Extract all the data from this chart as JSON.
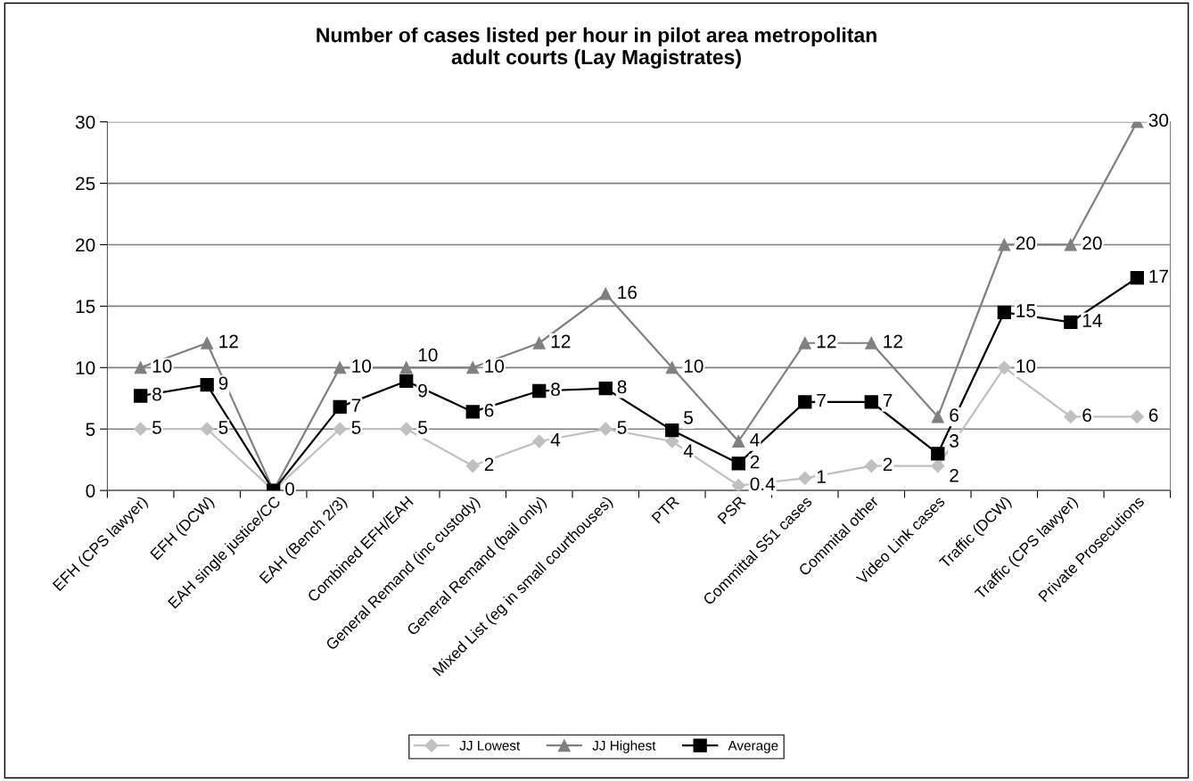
{
  "chart_data": {
    "type": "line",
    "title": "Number of cases listed per hour in pilot area metropolitan\nadult courts (Lay Magistrates)",
    "categories": [
      "EFH (CPS lawyer)",
      "EFH (DCW)",
      "EAH single justice/CC",
      "EAH (Bench 2/3)",
      "Combined EFH/EAH",
      "General Remand (inc custody)",
      "General Remand (bail only)",
      "Mixed List (eg in small courthouses)",
      "PTR",
      "PSR",
      "Committal S51 cases",
      "Commital other",
      "Video Link cases",
      "Traffic (DCW)",
      "Traffic (CPS lawyer)",
      "Private Prosecutions"
    ],
    "series": [
      {
        "name": "JJ Lowest",
        "color": "#c0c0c0",
        "marker": "diamond",
        "values": [
          5,
          5,
          0,
          5,
          5,
          2,
          4,
          5,
          4,
          0.4,
          1,
          2,
          2,
          10,
          6,
          6
        ],
        "value_labels": [
          "5",
          "5",
          null,
          "5",
          "5",
          "2",
          "4",
          "5",
          "4",
          "0.4",
          "1",
          "2",
          "2",
          "10",
          "6",
          "6"
        ]
      },
      {
        "name": "JJ Highest",
        "color": "#808080",
        "marker": "triangle",
        "values": [
          10,
          12,
          0,
          10,
          10,
          10,
          12,
          16,
          10,
          4,
          12,
          12,
          6,
          20,
          20,
          30
        ],
        "value_labels": [
          "10",
          "12",
          null,
          "10",
          "10",
          "10",
          "12",
          "16",
          "10",
          "4",
          "12",
          "12",
          "6",
          "20",
          "20",
          "30"
        ]
      },
      {
        "name": "Average",
        "color": "#000000",
        "marker": "square",
        "values": [
          7.7,
          8.6,
          0,
          6.8,
          8.9,
          6.4,
          8.1,
          8.3,
          4.9,
          2.2,
          7.2,
          7.2,
          3.0,
          14.5,
          13.7,
          17.3
        ],
        "value_labels": [
          "8",
          "9",
          "0",
          "7",
          "9",
          "6",
          "8",
          "8",
          "5",
          "2",
          "7",
          "7",
          "3",
          "15",
          "14",
          "17"
        ]
      }
    ],
    "ylim": [
      0,
      30
    ],
    "yticks": [
      0,
      5,
      10,
      15,
      20,
      25,
      30
    ],
    "grid": "y",
    "legend": "bottom",
    "line_style": "solid"
  }
}
